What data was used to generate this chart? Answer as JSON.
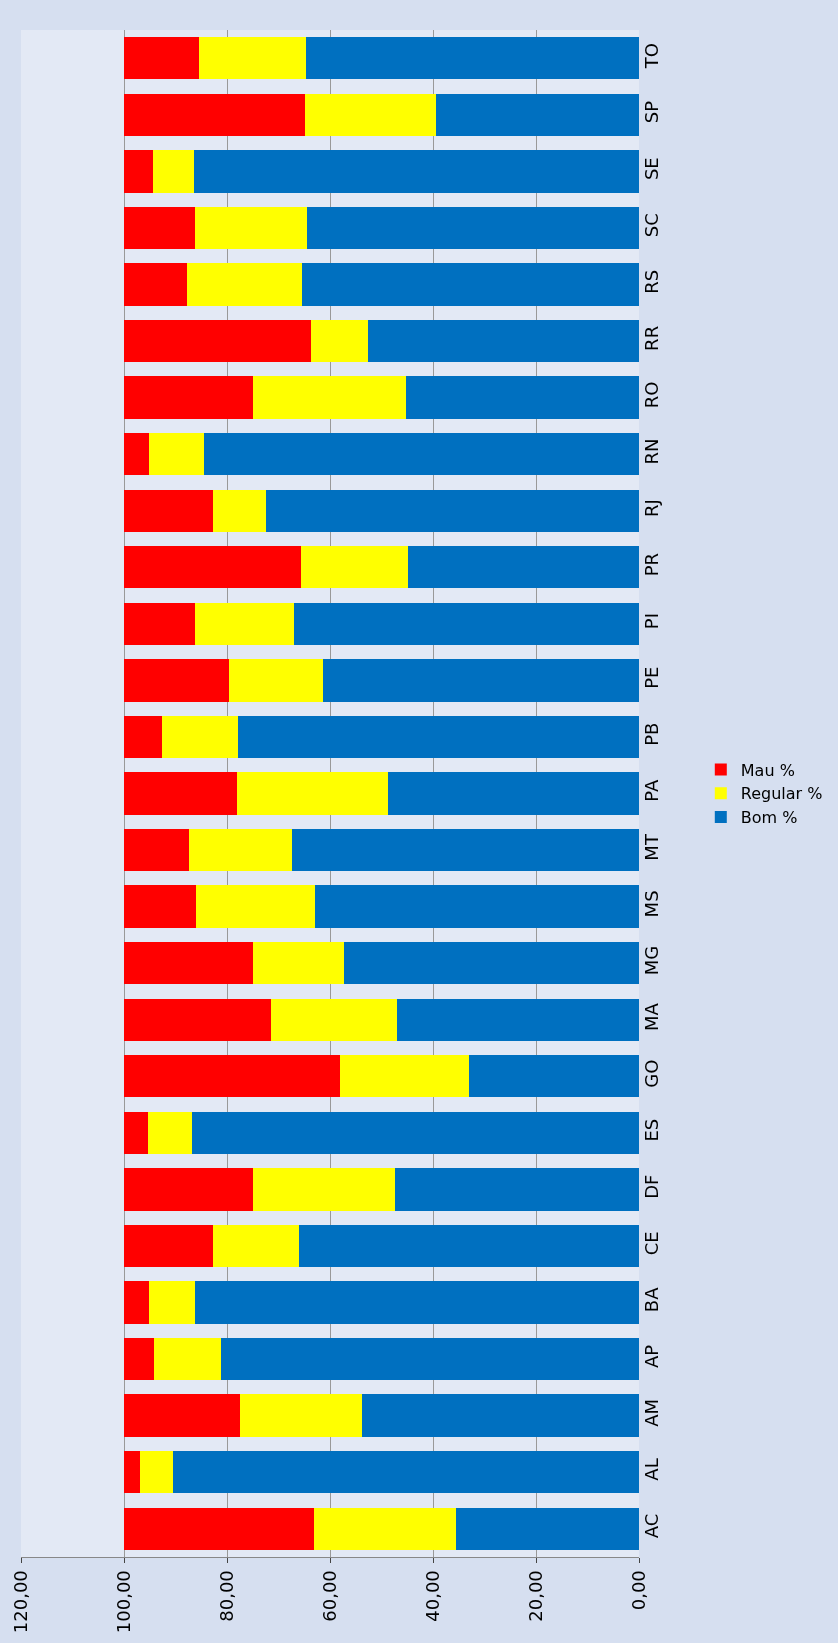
{
  "chart_data": {
    "type": "bar",
    "orientation": "horizontal",
    "stacked": true,
    "categories": [
      "TO",
      "SP",
      "SE",
      "SC",
      "RS",
      "RR",
      "RO",
      "RN",
      "RJ",
      "PR",
      "PI",
      "PE",
      "PB",
      "PA",
      "MT",
      "MS",
      "MG",
      "MA",
      "GO",
      "ES",
      "DF",
      "CE",
      "BA",
      "AP",
      "AM",
      "AL",
      "AC"
    ],
    "series": [
      {
        "name": "Bom %",
        "color": "#0070c0",
        "values": [
          64.7,
          39.4,
          86.4,
          64.5,
          65.4,
          52.7,
          45.2,
          84.5,
          72.5,
          44.9,
          66.9,
          61.3,
          77.8,
          48.8,
          67.3,
          63.0,
          57.2,
          46.9,
          33.1,
          86.7,
          47.3,
          66.0,
          86.2,
          81.1,
          53.8,
          90.5,
          35.5
        ]
      },
      {
        "name": "Regular %",
        "color": "#ffff00",
        "values": [
          20.7,
          25.4,
          8.0,
          21.7,
          22.3,
          11.0,
          29.7,
          10.6,
          10.3,
          20.7,
          19.4,
          18.3,
          14.8,
          29.2,
          20.0,
          23.0,
          17.8,
          24.5,
          25.0,
          8.6,
          27.7,
          16.8,
          9.0,
          13.1,
          23.7,
          6.3,
          27.7
        ]
      },
      {
        "name": "Mau %",
        "color": "#ff0000",
        "values": [
          14.6,
          35.2,
          5.6,
          13.8,
          12.3,
          36.3,
          25.1,
          4.9,
          17.2,
          34.4,
          13.7,
          20.4,
          7.4,
          22.0,
          12.7,
          14.0,
          25.0,
          28.6,
          41.9,
          4.7,
          25.0,
          17.2,
          4.8,
          5.8,
          22.5,
          3.2,
          36.8
        ]
      }
    ],
    "xlim": [
      120,
      0
    ],
    "xticks": [
      {
        "value": 0,
        "label": "0,00"
      },
      {
        "value": 20,
        "label": "20,00"
      },
      {
        "value": 40,
        "label": "40,00"
      },
      {
        "value": 60,
        "label": "60,00"
      },
      {
        "value": 80,
        "label": "80,00"
      },
      {
        "value": 100,
        "label": "100,00"
      },
      {
        "value": 120,
        "label": "120,00"
      }
    ],
    "grid": "x",
    "legend": "right"
  }
}
